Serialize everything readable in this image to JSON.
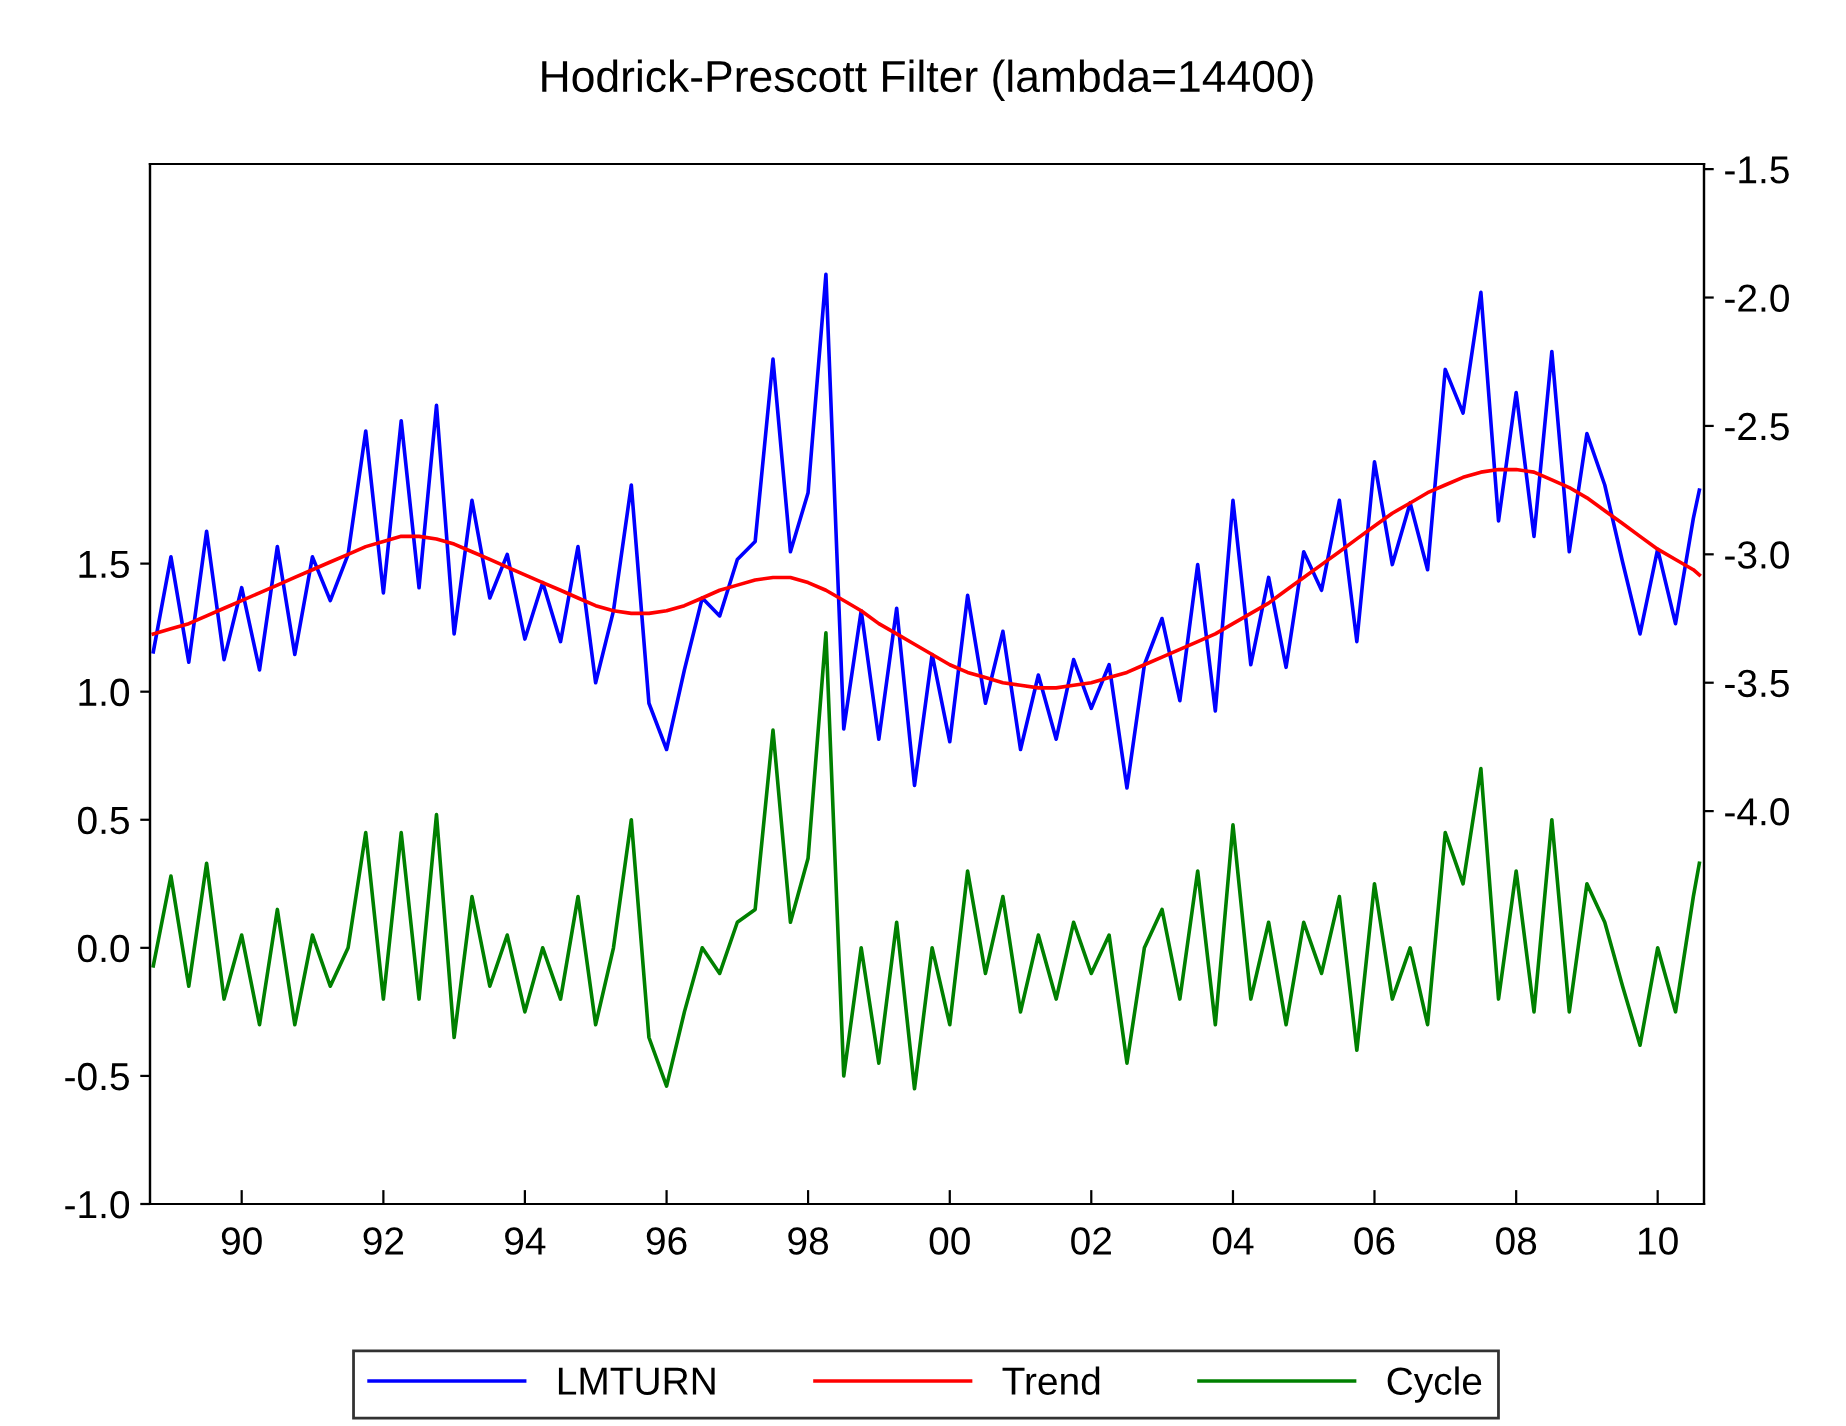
{
  "chart_data": {
    "type": "line",
    "title": "Hodrick-Prescott Filter (lambda=14400)",
    "x": [
      "1989-04",
      "1989-07",
      "1989-10",
      "1990-01",
      "1990-04",
      "1990-07",
      "1990-10",
      "1991-01",
      "1991-04",
      "1991-07",
      "1991-10",
      "1992-01",
      "1992-04",
      "1992-07",
      "1992-10",
      "1993-01",
      "1993-04",
      "1993-07",
      "1993-10",
      "1994-01",
      "1994-04",
      "1994-07",
      "1994-10",
      "1995-01",
      "1995-04",
      "1995-07",
      "1995-10",
      "1996-01",
      "1996-04",
      "1996-07",
      "1996-10",
      "1997-01",
      "1997-04",
      "1997-07",
      "1997-10",
      "1998-01",
      "1998-04",
      "1998-07",
      "1998-10",
      "1999-01",
      "1999-04",
      "1999-07",
      "1999-10",
      "2000-01",
      "2000-04",
      "2000-07",
      "2000-10",
      "2001-01",
      "2001-04",
      "2001-07",
      "2001-10",
      "2002-01",
      "2002-04",
      "2002-07",
      "2002-10",
      "2003-01",
      "2003-04",
      "2003-07",
      "2003-10",
      "2004-01",
      "2004-04",
      "2004-07",
      "2004-10",
      "2005-01",
      "2005-04",
      "2005-07",
      "2005-10",
      "2006-01",
      "2006-04",
      "2006-07",
      "2006-10",
      "2007-01",
      "2007-04",
      "2007-07",
      "2007-10",
      "2008-01",
      "2008-04",
      "2008-07",
      "2008-10",
      "2009-01",
      "2009-04",
      "2009-07",
      "2009-10",
      "2010-01",
      "2010-04",
      "2010-07",
      "2010-10",
      "2011-01",
      "2011-02"
    ],
    "series": [
      {
        "name": "LMTURN",
        "color": "#0000ff",
        "axis": "y2",
        "values": [
          -3.38,
          -3.01,
          -3.42,
          -2.91,
          -3.41,
          -3.13,
          -3.45,
          -2.97,
          -3.39,
          -3.01,
          -3.18,
          -3.0,
          -2.52,
          -3.15,
          -2.48,
          -3.13,
          -2.42,
          -3.31,
          -2.79,
          -3.17,
          -3.0,
          -3.33,
          -3.11,
          -3.34,
          -2.97,
          -3.5,
          -3.22,
          -2.73,
          -3.58,
          -3.76,
          -3.45,
          -3.17,
          -3.24,
          -3.02,
          -2.95,
          -2.24,
          -2.99,
          -2.76,
          -1.91,
          -3.68,
          -3.22,
          -3.72,
          -3.21,
          -3.9,
          -3.39,
          -3.73,
          -3.16,
          -3.58,
          -3.3,
          -3.76,
          -3.47,
          -3.72,
          -3.41,
          -3.6,
          -3.43,
          -3.91,
          -3.43,
          -3.25,
          -3.57,
          -3.04,
          -3.61,
          -2.79,
          -3.43,
          -3.09,
          -3.44,
          -2.99,
          -3.14,
          -2.79,
          -3.34,
          -2.64,
          -3.04,
          -2.8,
          -3.06,
          -2.28,
          -2.45,
          -1.98,
          -2.87,
          -2.37,
          -2.93,
          -2.21,
          -2.99,
          -2.53,
          -2.73,
          -3.03,
          -3.31,
          -2.98,
          -3.27,
          -2.86,
          -2.75
        ]
      },
      {
        "name": "Trend",
        "color": "#ff0000",
        "axis": "y2",
        "values": [
          -3.31,
          -3.29,
          -3.27,
          -3.24,
          -3.21,
          -3.18,
          -3.15,
          -3.12,
          -3.09,
          -3.06,
          -3.03,
          -3.0,
          -2.97,
          -2.95,
          -2.93,
          -2.93,
          -2.94,
          -2.96,
          -2.99,
          -3.02,
          -3.05,
          -3.08,
          -3.11,
          -3.14,
          -3.17,
          -3.2,
          -3.22,
          -3.23,
          -3.23,
          -3.22,
          -3.2,
          -3.17,
          -3.14,
          -3.12,
          -3.1,
          -3.09,
          -3.09,
          -3.11,
          -3.14,
          -3.18,
          -3.22,
          -3.27,
          -3.31,
          -3.35,
          -3.39,
          -3.43,
          -3.46,
          -3.48,
          -3.5,
          -3.51,
          -3.52,
          -3.52,
          -3.51,
          -3.5,
          -3.48,
          -3.46,
          -3.43,
          -3.4,
          -3.37,
          -3.34,
          -3.31,
          -3.27,
          -3.23,
          -3.19,
          -3.14,
          -3.09,
          -3.04,
          -2.99,
          -2.94,
          -2.89,
          -2.84,
          -2.8,
          -2.76,
          -2.73,
          -2.7,
          -2.68,
          -2.67,
          -2.67,
          -2.68,
          -2.71,
          -2.74,
          -2.78,
          -2.83,
          -2.88,
          -2.93,
          -2.98,
          -3.02,
          -3.06,
          -3.08
        ]
      },
      {
        "name": "Cycle",
        "color": "#008000",
        "values": [
          -0.07,
          0.28,
          -0.15,
          0.33,
          -0.2,
          0.05,
          -0.3,
          0.15,
          -0.3,
          0.05,
          -0.15,
          0.0,
          0.45,
          -0.2,
          0.45,
          -0.2,
          0.52,
          -0.35,
          0.2,
          -0.15,
          0.05,
          -0.25,
          0.0,
          -0.2,
          0.2,
          -0.3,
          0.0,
          0.5,
          -0.35,
          -0.54,
          -0.25,
          0.0,
          -0.1,
          0.1,
          0.15,
          0.85,
          0.1,
          0.35,
          1.23,
          -0.5,
          0.0,
          -0.45,
          0.1,
          -0.55,
          0.0,
          -0.3,
          0.3,
          -0.1,
          0.2,
          -0.25,
          0.05,
          -0.2,
          0.1,
          -0.1,
          0.05,
          -0.45,
          0.0,
          0.15,
          -0.2,
          0.3,
          -0.3,
          0.48,
          -0.2,
          0.1,
          -0.3,
          0.1,
          -0.1,
          0.2,
          -0.4,
          0.25,
          -0.2,
          0.0,
          -0.3,
          0.45,
          0.25,
          0.7,
          -0.2,
          0.3,
          -0.25,
          0.5,
          -0.25,
          0.25,
          0.1,
          -0.15,
          -0.38,
          0.0,
          -0.25,
          0.2,
          0.33
        ]
      }
    ],
    "xlim": [
      "1989-03-15",
      "2011-02-25"
    ],
    "xticks": [
      {
        "value": "1990-07",
        "label": "90"
      },
      {
        "value": "1992-07",
        "label": "92"
      },
      {
        "value": "1994-07",
        "label": "94"
      },
      {
        "value": "1996-07",
        "label": "96"
      },
      {
        "value": "1998-07",
        "label": "98"
      },
      {
        "value": "2000-07",
        "label": "00"
      },
      {
        "value": "2002-07",
        "label": "02"
      },
      {
        "value": "2004-07",
        "label": "04"
      },
      {
        "value": "2006-07",
        "label": "06"
      },
      {
        "value": "2008-07",
        "label": "08"
      },
      {
        "value": "2010-07",
        "label": "10"
      }
    ],
    "ylim": [
      -1.0,
      3.06
    ],
    "yticks": [
      {
        "value": -1.0,
        "label": "-1.0"
      },
      {
        "value": -0.5,
        "label": "-0.5"
      },
      {
        "value": 0.0,
        "label": "0.0"
      },
      {
        "value": 0.5,
        "label": "0.5"
      },
      {
        "value": 1.0,
        "label": "1.0"
      },
      {
        "value": 1.5,
        "label": "1.5"
      }
    ],
    "y2lim": [
      -5.53,
      -1.48
    ],
    "y2ticks": [
      {
        "value": -4.0,
        "label": "-4.0"
      },
      {
        "value": -3.5,
        "label": "-3.5"
      },
      {
        "value": -3.0,
        "label": "-3.0"
      },
      {
        "value": -2.5,
        "label": "-2.5"
      },
      {
        "value": -2.0,
        "label": "-2.0"
      },
      {
        "value": -1.5,
        "label": "-1.5"
      }
    ],
    "grid": false,
    "legend": "bottom",
    "marker": "none",
    "line_style": "solid"
  }
}
